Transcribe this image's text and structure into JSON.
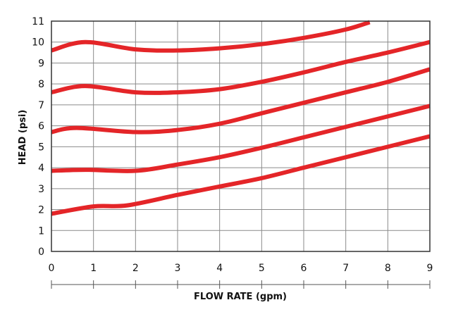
{
  "chart_data": {
    "type": "line",
    "title": "",
    "xlabel": "FLOW RATE (gpm)",
    "ylabel": "HEAD (psi)",
    "xlim": [
      0,
      9
    ],
    "ylim": [
      0,
      11
    ],
    "xticks": [
      "0",
      "1",
      "2",
      "3",
      "4",
      "5",
      "6",
      "7",
      "8",
      "9"
    ],
    "yticks": [
      "0",
      "1",
      "2",
      "3",
      "4",
      "5",
      "6",
      "7",
      "8",
      "9",
      "10",
      "11"
    ],
    "grid": true,
    "line_color": "#e42528",
    "series": [
      {
        "x": [
          0,
          0.8,
          2,
          3,
          4,
          5,
          6,
          7,
          7.57
        ],
        "y": [
          9.6,
          10.0,
          9.65,
          9.6,
          9.7,
          9.9,
          10.2,
          10.6,
          10.95
        ]
      },
      {
        "x": [
          0,
          0.8,
          2,
          3,
          4,
          5,
          6,
          7,
          8,
          9
        ],
        "y": [
          7.6,
          7.9,
          7.6,
          7.6,
          7.75,
          8.1,
          8.55,
          9.05,
          9.5,
          10.0
        ]
      },
      {
        "x": [
          0,
          0.6,
          2,
          3,
          4,
          5,
          6,
          7,
          8,
          9
        ],
        "y": [
          5.7,
          5.9,
          5.7,
          5.8,
          6.1,
          6.6,
          7.1,
          7.6,
          8.1,
          8.7
        ]
      },
      {
        "x": [
          0,
          0.8,
          2,
          3,
          4,
          5,
          6,
          7,
          8,
          9
        ],
        "y": [
          3.85,
          3.9,
          3.85,
          4.15,
          4.5,
          4.95,
          5.45,
          5.95,
          6.45,
          6.95
        ]
      },
      {
        "x": [
          0,
          1,
          1.8,
          3,
          4,
          5,
          6,
          7,
          8,
          9
        ],
        "y": [
          1.8,
          2.15,
          2.2,
          2.7,
          3.1,
          3.5,
          4.0,
          4.5,
          5.0,
          5.5
        ]
      }
    ]
  }
}
